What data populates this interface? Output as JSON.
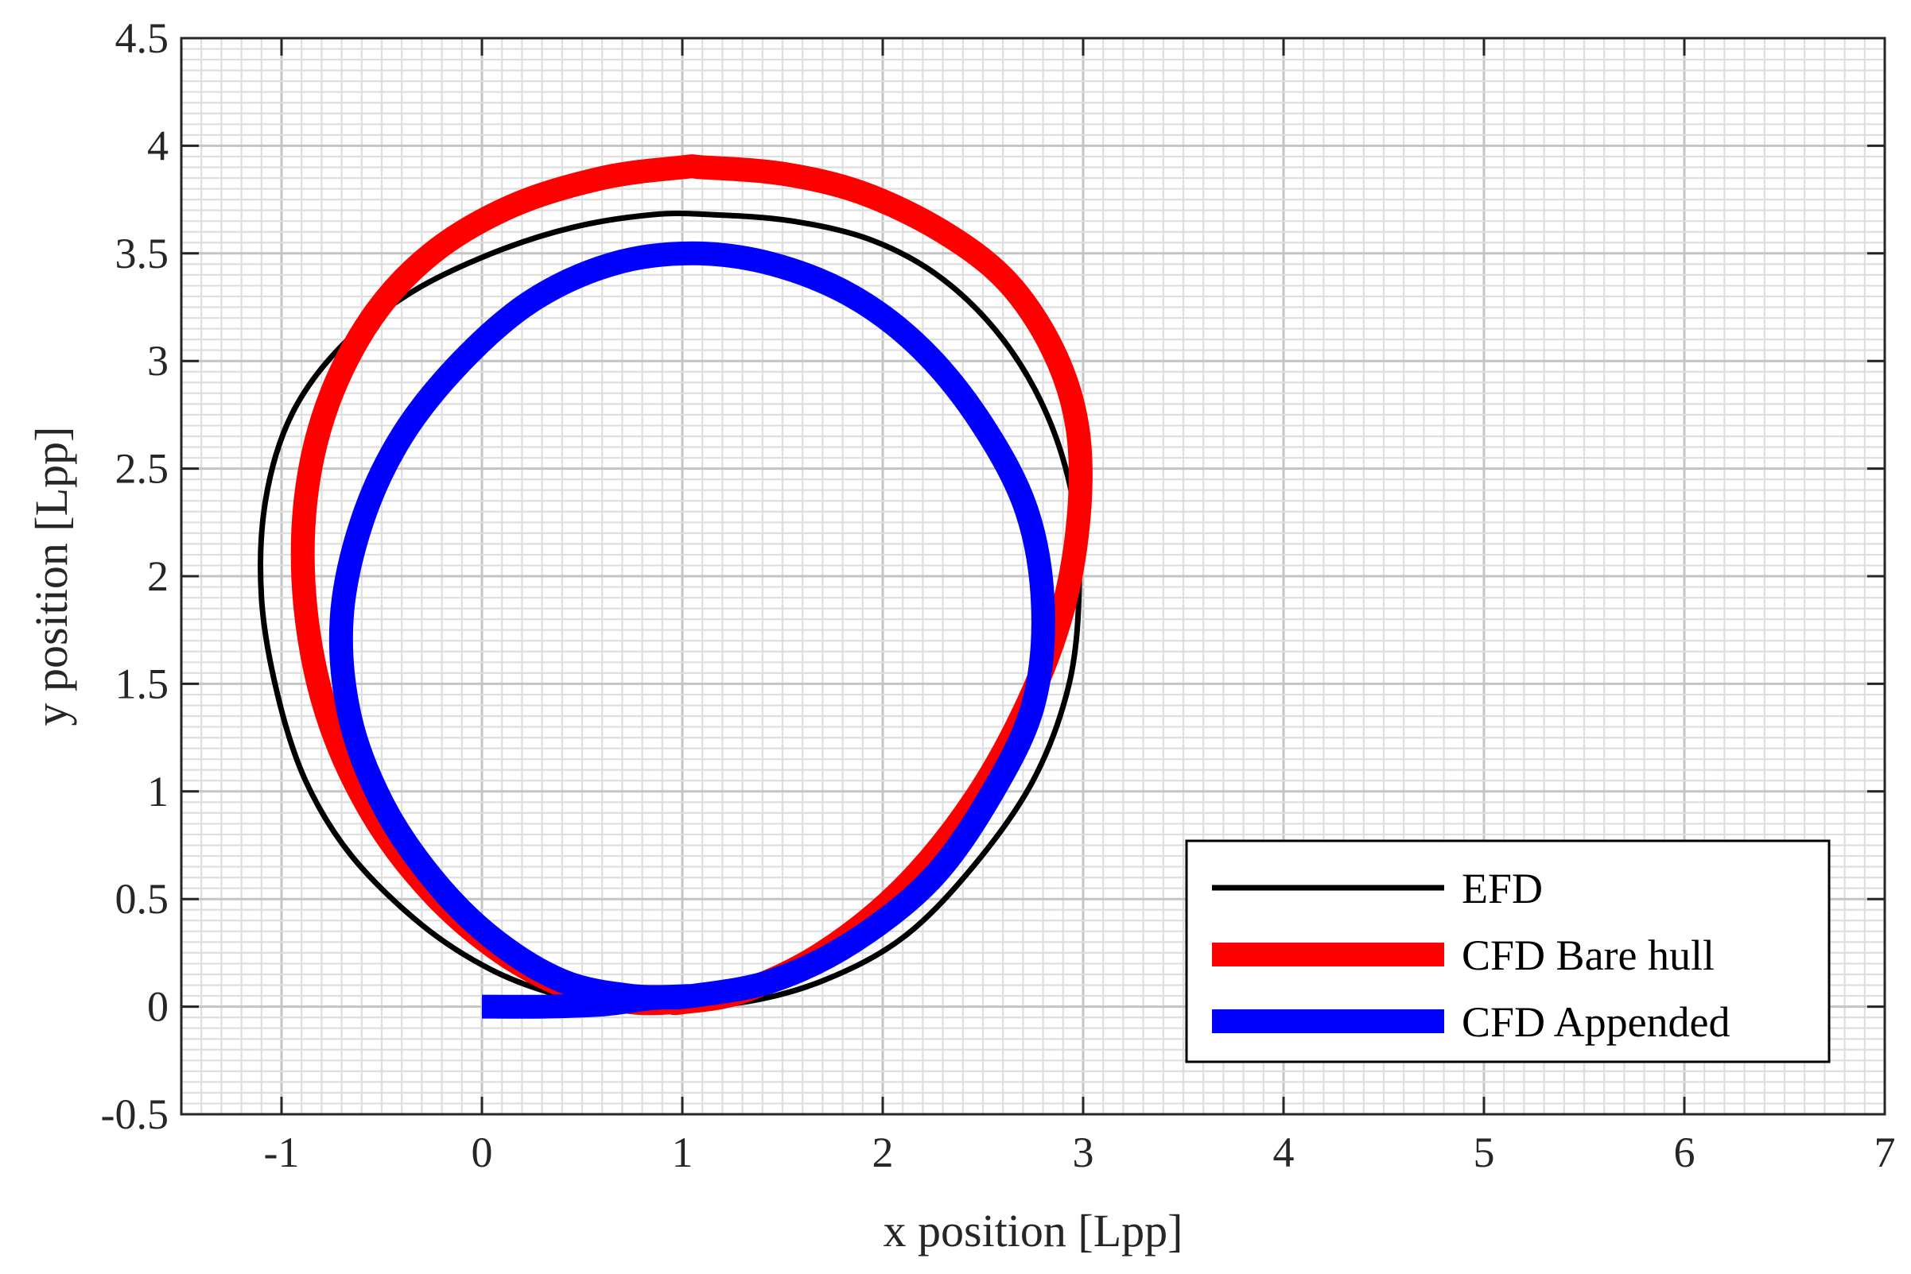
{
  "chart_data": {
    "type": "line",
    "title": "",
    "xlabel": "x position [Lpp]",
    "ylabel": "y position [Lpp]",
    "xlim": [
      -1.5,
      7
    ],
    "ylim": [
      -0.5,
      4.5
    ],
    "xticks": [
      -1,
      0,
      1,
      2,
      3,
      4,
      5,
      6,
      7
    ],
    "xtick_labels": [
      "-1",
      "0",
      "1",
      "2",
      "3",
      "4",
      "5",
      "6",
      "7"
    ],
    "yticks": [
      -0.5,
      0,
      0.5,
      1,
      1.5,
      2,
      2.5,
      3,
      3.5,
      4,
      4.5
    ],
    "ytick_labels": [
      "-0.5",
      "0",
      "0.5",
      "1",
      "1.5",
      "2",
      "2.5",
      "3",
      "3.5",
      "4",
      "4.5"
    ],
    "grid": "on (major and minor)",
    "legend_position": "bottom-right",
    "series": [
      {
        "name": "EFD",
        "color": "#000000",
        "x": [
          0.0,
          0.3,
          0.6,
          0.9,
          1.3,
          1.7,
          2.1,
          2.45,
          2.75,
          2.93,
          2.98,
          2.95,
          2.82,
          2.6,
          2.3,
          1.95,
          1.55,
          1.15,
          0.85,
          0.45,
          0.05,
          -0.35,
          -0.7,
          -0.95,
          -1.08,
          -1.1,
          -1.02,
          -0.88,
          -0.65,
          -0.3,
          0.05,
          0.4,
          0.75,
          1.1
        ],
        "y": [
          0.0,
          0.0,
          0.0,
          0.0,
          0.02,
          0.12,
          0.32,
          0.65,
          1.05,
          1.5,
          1.95,
          2.35,
          2.75,
          3.1,
          3.38,
          3.56,
          3.65,
          3.68,
          3.68,
          3.62,
          3.5,
          3.32,
          3.07,
          2.75,
          2.35,
          1.9,
          1.45,
          1.05,
          0.7,
          0.38,
          0.17,
          0.05,
          0.0,
          0.0
        ]
      },
      {
        "name": "CFD Bare hull",
        "color": "#ff0000",
        "x": [
          0.95,
          1.0,
          1.3,
          1.7,
          2.1,
          2.45,
          2.72,
          2.9,
          2.98,
          2.97,
          2.85,
          2.62,
          2.3,
          1.9,
          1.5,
          1.1,
          1.0,
          0.6,
          0.15,
          -0.25,
          -0.55,
          -0.77,
          -0.88,
          -0.88,
          -0.77,
          -0.55,
          -0.25,
          0.1,
          0.45,
          0.75,
          0.95
        ],
        "y": [
          0.02,
          0.02,
          0.07,
          0.25,
          0.55,
          0.95,
          1.4,
          1.85,
          2.3,
          2.7,
          3.05,
          3.37,
          3.6,
          3.78,
          3.87,
          3.9,
          3.9,
          3.85,
          3.72,
          3.5,
          3.2,
          2.8,
          2.35,
          1.85,
          1.35,
          0.9,
          0.53,
          0.25,
          0.08,
          0.02,
          0.02
        ]
      },
      {
        "name": "CFD Appended",
        "color": "#0000ff",
        "x": [
          0.0,
          0.3,
          0.6,
          0.85,
          1.05,
          1.45,
          1.85,
          2.25,
          2.55,
          2.75,
          2.8,
          2.72,
          2.5,
          2.2,
          1.85,
          1.45,
          1.05,
          0.65,
          0.25,
          -0.1,
          -0.4,
          -0.6,
          -0.7,
          -0.66,
          -0.5,
          -0.25,
          0.05,
          0.4,
          0.75,
          1.05
        ],
        "y": [
          0.0,
          0.0,
          0.01,
          0.04,
          0.05,
          0.12,
          0.3,
          0.6,
          1.0,
          1.4,
          1.85,
          2.3,
          2.7,
          3.05,
          3.3,
          3.45,
          3.5,
          3.45,
          3.28,
          3.0,
          2.65,
          2.25,
          1.8,
          1.35,
          0.95,
          0.6,
          0.32,
          0.12,
          0.05,
          0.05
        ]
      }
    ]
  }
}
